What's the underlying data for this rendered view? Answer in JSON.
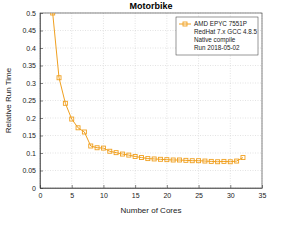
{
  "chart_data": {
    "type": "line",
    "title": "Motorbike",
    "x_label": "Number of Cores",
    "y_label": "Relative Run Time",
    "x": [
      2,
      3,
      4,
      5,
      6,
      7,
      8,
      9,
      10,
      11,
      12,
      13,
      14,
      15,
      16,
      17,
      18,
      19,
      20,
      21,
      22,
      23,
      24,
      25,
      26,
      27,
      28,
      29,
      30,
      31,
      32
    ],
    "series": [
      {
        "name": "AMD EPYC 7551P\nRedHat 7.x GCC 4.8.5\nNative compile\nRun 2018-05-02",
        "color": "#f0a020",
        "marker": "square",
        "line_style": "solid",
        "values": [
          0.5,
          0.315,
          0.242,
          0.197,
          0.172,
          0.16,
          0.12,
          0.115,
          0.114,
          0.105,
          0.101,
          0.097,
          0.094,
          0.09,
          0.087,
          0.084,
          0.083,
          0.082,
          0.081,
          0.08,
          0.08,
          0.079,
          0.078,
          0.078,
          0.077,
          0.076,
          0.075,
          0.076,
          0.075,
          0.077,
          0.087
        ]
      }
    ],
    "xlim": [
      0,
      35
    ],
    "xticks": [
      0,
      5,
      10,
      15,
      20,
      25,
      30,
      35
    ],
    "ylim": [
      0,
      0.5
    ],
    "yticks": [
      0,
      0.05,
      0.1,
      0.15,
      0.2,
      0.25,
      0.3,
      0.35,
      0.4,
      0.45,
      0.5
    ],
    "grid": true,
    "legend": "top-right"
  }
}
